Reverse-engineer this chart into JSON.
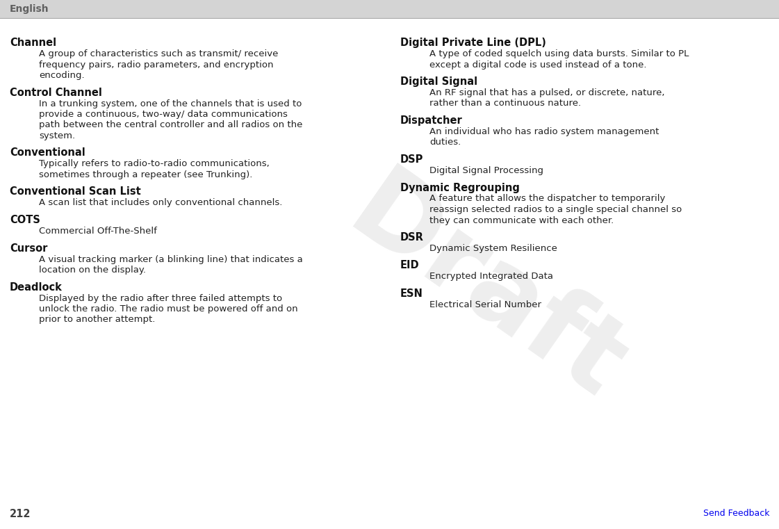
{
  "bg_color": "#ffffff",
  "header_bg": "#d4d4d4",
  "header_text": "English",
  "header_text_color": "#606060",
  "page_number": "212",
  "page_number_color": "#404040",
  "send_feedback_text": "Send Feedback",
  "send_feedback_color": "#0000ee",
  "draft_watermark": "Draft",
  "draft_color": "#c8c8c8",
  "body_text_color": "#222222",
  "term_color": "#111111",
  "left_entries": [
    {
      "term": "Channel",
      "definition_lines": [
        "A group of characteristics such as transmit/ receive",
        "frequency pairs, radio parameters, and encryption",
        "encoding."
      ]
    },
    {
      "term": "Control Channel",
      "definition_lines": [
        "In a trunking system, one of the channels that is used to",
        "provide a continuous, two-way/ data communications",
        "path between the central controller and all radios on the",
        "system."
      ]
    },
    {
      "term": "Conventional",
      "definition_lines": [
        "Typically refers to radio-to-radio communications,",
        "sometimes through a repeater (see Trunking)."
      ]
    },
    {
      "term": "Conventional Scan List",
      "definition_lines": [
        "A scan list that includes only conventional channels."
      ]
    },
    {
      "term": "COTS",
      "definition_lines": [
        "Commercial Off-The-Shelf"
      ]
    },
    {
      "term": "Cursor",
      "definition_lines": [
        "A visual tracking marker (a blinking line) that indicates a",
        "location on the display."
      ]
    },
    {
      "term": "Deadlock",
      "definition_lines": [
        "Displayed by the radio after three failed attempts to",
        "unlock the radio. The radio must be powered off and on",
        "prior to another attempt."
      ]
    }
  ],
  "right_entries": [
    {
      "term": "Digital Private Line (DPL)",
      "definition_lines": [
        "A type of coded squelch using data bursts. Similar to PL",
        "except a digital code is used instead of a tone."
      ]
    },
    {
      "term": "Digital Signal",
      "definition_lines": [
        "An RF signal that has a pulsed, or discrete, nature,",
        "rather than a continuous nature."
      ]
    },
    {
      "term": "Dispatcher",
      "definition_lines": [
        "An individual who has radio system management",
        "duties."
      ]
    },
    {
      "term": "DSP",
      "definition_lines": [
        "Digital Signal Processing"
      ]
    },
    {
      "term": "Dynamic Regrouping",
      "definition_lines": [
        "A feature that allows the dispatcher to temporarily",
        "reassign selected radios to a single special channel so",
        "they can communicate with each other."
      ]
    },
    {
      "term": "DSR",
      "definition_lines": [
        "Dynamic System Resilience"
      ]
    },
    {
      "term": "EID",
      "definition_lines": [
        "Encrypted Integrated Data"
      ]
    },
    {
      "term": "ESN",
      "definition_lines": [
        "Electrical Serial Number"
      ]
    }
  ]
}
